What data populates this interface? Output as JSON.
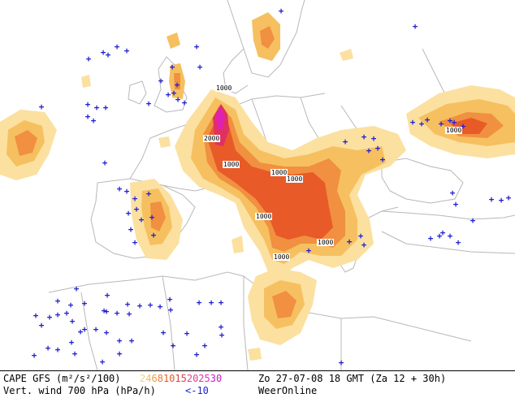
{
  "legend": {
    "line1_label": "CAPE GFS (m²/s²/100)",
    "cape_scale": [
      {
        "value": "2",
        "color": "#f5d080"
      },
      {
        "value": "4",
        "color": "#f6b860"
      },
      {
        "value": "6",
        "color": "#f29a40"
      },
      {
        "value": "8",
        "color": "#ee7a30"
      },
      {
        "value": "10",
        "color": "#e85a28"
      },
      {
        "value": "15",
        "color": "#e04040"
      },
      {
        "value": "20",
        "color": "#e0408a"
      },
      {
        "value": "25",
        "color": "#e030b0"
      },
      {
        "value": "30",
        "color": "#c020c0"
      }
    ],
    "valid_time": "Zo 27-07-08 18 GMT (Za 12 + 30h)",
    "line2_label": "Vert. wind 700 hPa (hPa/h)",
    "vert_wind_threshold": "<-10",
    "vert_wind_color": "#2020d0",
    "provider": "WeerOnline"
  },
  "contour_labels": [
    "1000",
    "2000",
    "1000",
    "1000",
    "1000",
    "1000",
    "1000",
    "1000",
    "1000"
  ],
  "colors": {
    "cape_light": "#fbe0a0",
    "cape_low": "#f6c060",
    "cape_mid": "#f09040",
    "cape_high": "#e85a28",
    "cape_very_high": "#e03060",
    "cape_extreme": "#e020b0",
    "coastline": "#b8b8b8",
    "marker": "#2020d0"
  },
  "marker_symbol": "+"
}
